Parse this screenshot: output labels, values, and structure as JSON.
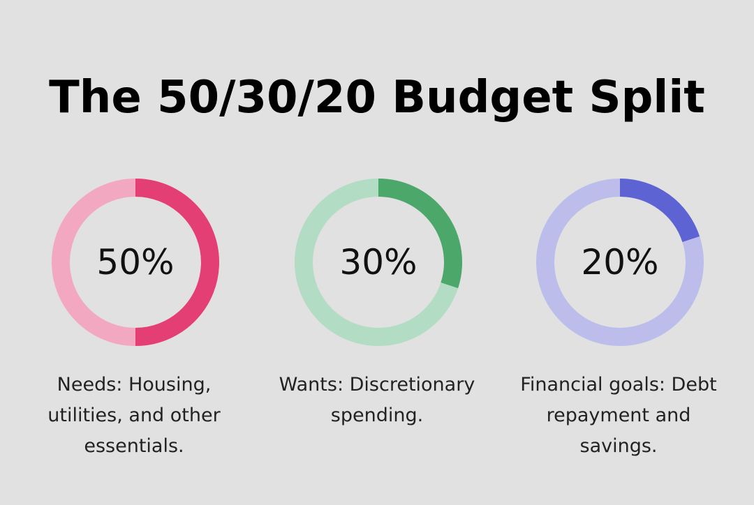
{
  "title": "The 50/30/20 Budget Split",
  "chart_data": [
    {
      "type": "pie",
      "value": 50,
      "total": 100,
      "percent_label": "50%",
      "caption": "Needs: Housing, utilities, and other essentials.",
      "colors": {
        "fill": "#e43f74",
        "track": "#f3a8c1"
      }
    },
    {
      "type": "pie",
      "value": 30,
      "total": 100,
      "percent_label": "30%",
      "caption": "Wants: Discretionary spending.",
      "colors": {
        "fill": "#4ba76a",
        "track": "#b2dcc3"
      }
    },
    {
      "type": "pie",
      "value": 20,
      "total": 100,
      "percent_label": "20%",
      "caption": "Financial goals: Debt repayment and savings.",
      "colors": {
        "fill": "#5e63d3",
        "track": "#bcbdea"
      }
    }
  ],
  "colors": {
    "background": "#e0e1e0",
    "title": "#000000"
  }
}
